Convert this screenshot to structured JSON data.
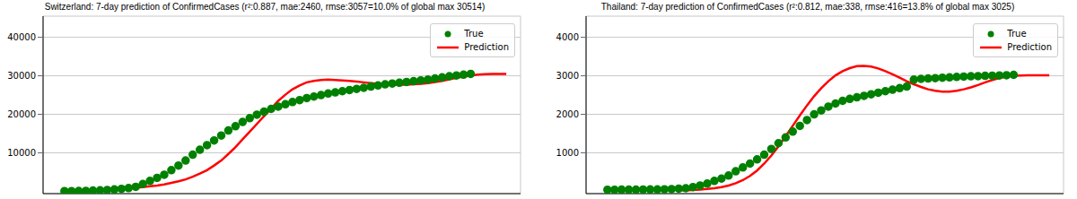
{
  "chart_data": [
    {
      "type": "line",
      "title": "Switzerland: 7-day prediction of ConfirmedCases (r²:0.887, mae:2460, rmse:3057=10.0% of global max 30514)",
      "x": [
        0,
        1,
        2,
        3,
        4,
        5,
        6,
        7,
        8,
        9,
        10,
        11,
        12,
        13,
        14,
        15,
        16,
        17,
        18,
        19,
        20,
        21,
        22,
        23,
        24,
        25,
        26,
        27,
        28,
        29,
        30,
        31,
        32,
        33,
        34,
        35,
        36,
        37,
        38,
        39,
        40,
        41,
        42,
        43,
        44,
        45,
        46,
        47,
        48,
        49,
        50,
        51,
        52,
        53,
        54,
        55,
        56,
        57,
        58,
        59,
        60,
        61,
        62
      ],
      "xlim": [
        -3,
        64
      ],
      "xticks": [
        -2,
        -1,
        0,
        1,
        2,
        3,
        4,
        5,
        6,
        7,
        8,
        9,
        10,
        11,
        12,
        13,
        14,
        15,
        16,
        17,
        18,
        19,
        20,
        21,
        22,
        23,
        24,
        25,
        26,
        27,
        28,
        29,
        30,
        31,
        32,
        33,
        34,
        35,
        36,
        37,
        38,
        39,
        40,
        41,
        42,
        43,
        44,
        45,
        46,
        47,
        48,
        49,
        50,
        51,
        52,
        53,
        54,
        55,
        56,
        57,
        58,
        59,
        60,
        61,
        62,
        63
      ],
      "ylim": [
        -600,
        45500
      ],
      "yticks": [
        10000,
        20000,
        30000,
        40000
      ],
      "grid": true,
      "legend": "upper right",
      "tick_labels": "y",
      "series": [
        {
          "name": "True",
          "color": "green",
          "marker": "o",
          "line_style": "none",
          "values": [
            50,
            60,
            90,
            110,
            210,
            260,
            340,
            500,
            650,
            850,
            1150,
            1900,
            2700,
            3500,
            4300,
            5500,
            6700,
            8000,
            9500,
            10800,
            12000,
            13200,
            14500,
            15800,
            16900,
            18000,
            19000,
            19900,
            20700,
            21400,
            22000,
            22600,
            23200,
            23700,
            24200,
            24600,
            25000,
            25400,
            25700,
            26000,
            26300,
            26600,
            26900,
            27200,
            27500,
            27800,
            28000,
            28200,
            28400,
            28600,
            28800,
            29000,
            29300,
            29600,
            29900,
            30100,
            30300,
            30500,
            null,
            null,
            null,
            null,
            null
          ]
        },
        {
          "name": "Prediction",
          "color": "red",
          "line_style": "solid",
          "values": [
            null,
            null,
            null,
            null,
            null,
            null,
            null,
            null,
            null,
            null,
            1000,
            1100,
            1300,
            1500,
            1800,
            2200,
            2600,
            3100,
            3800,
            4600,
            5500,
            6700,
            8000,
            9700,
            11500,
            13500,
            15500,
            17500,
            19500,
            21500,
            23500,
            25100,
            26500,
            27500,
            28300,
            28700,
            28900,
            29000,
            28900,
            28800,
            28700,
            28500,
            28300,
            28100,
            27900,
            27800,
            27700,
            27700,
            27700,
            27800,
            27900,
            28100,
            28400,
            28700,
            29100,
            29500,
            29800,
            30100,
            30300,
            30400,
            30500,
            30500,
            30500
          ]
        }
      ]
    },
    {
      "type": "line",
      "title": "Thailand: 7-day prediction of ConfirmedCases (r²:0.812, mae:338, rmse:416=13.8% of global max 3025)",
      "x": [
        0,
        1,
        2,
        3,
        4,
        5,
        6,
        7,
        8,
        9,
        10,
        11,
        12,
        13,
        14,
        15,
        16,
        17,
        18,
        19,
        20,
        21,
        22,
        23,
        24,
        25,
        26,
        27,
        28,
        29,
        30,
        31,
        32,
        33,
        34,
        35,
        36,
        37,
        38,
        39,
        40,
        41,
        42,
        43,
        44,
        45,
        46,
        47,
        48,
        49,
        50,
        51,
        52,
        53,
        54,
        55,
        56,
        57,
        58,
        59,
        60,
        61,
        62
      ],
      "xlim": [
        -3,
        64
      ],
      "xticks": [
        -2,
        -1,
        0,
        1,
        2,
        3,
        4,
        5,
        6,
        7,
        8,
        9,
        10,
        11,
        12,
        13,
        14,
        15,
        16,
        17,
        18,
        19,
        20,
        21,
        22,
        23,
        24,
        25,
        26,
        27,
        28,
        29,
        30,
        31,
        32,
        33,
        34,
        35,
        36,
        37,
        38,
        39,
        40,
        41,
        42,
        43,
        44,
        45,
        46,
        47,
        48,
        49,
        50,
        51,
        52,
        53,
        54,
        55,
        56,
        57,
        58,
        59,
        60,
        61,
        62,
        63
      ],
      "ylim": [
        -60,
        4550
      ],
      "yticks": [
        1000,
        2000,
        3000,
        4000
      ],
      "grid": true,
      "legend": "upper right",
      "tick_labels": "y",
      "series": [
        {
          "name": "True",
          "color": "green",
          "marker": "o",
          "line_style": "none",
          "values": [
            40,
            40,
            42,
            43,
            44,
            47,
            48,
            50,
            53,
            59,
            70,
            80,
            110,
            150,
            200,
            270,
            330,
            410,
            520,
            620,
            720,
            830,
            950,
            1100,
            1250,
            1400,
            1550,
            1700,
            1850,
            2000,
            2100,
            2200,
            2280,
            2350,
            2400,
            2440,
            2480,
            2520,
            2560,
            2600,
            2640,
            2680,
            2720,
            2900,
            2920,
            2930,
            2940,
            2950,
            2960,
            2970,
            2980,
            2988,
            2992,
            3000,
            3004,
            3010,
            3015,
            3025,
            null,
            null,
            null,
            null,
            null
          ]
        },
        {
          "name": "Prediction",
          "color": "red",
          "line_style": "solid",
          "values": [
            null,
            null,
            null,
            null,
            null,
            null,
            null,
            null,
            null,
            null,
            20,
            25,
            35,
            45,
            60,
            80,
            110,
            150,
            210,
            290,
            400,
            540,
            720,
            930,
            1170,
            1430,
            1700,
            1970,
            2230,
            2470,
            2680,
            2860,
            3010,
            3120,
            3200,
            3250,
            3260,
            3240,
            3190,
            3120,
            3040,
            2950,
            2860,
            2780,
            2710,
            2650,
            2610,
            2590,
            2590,
            2610,
            2650,
            2700,
            2760,
            2830,
            2890,
            2940,
            2980,
            3000,
            3010,
            3015,
            3015,
            3015,
            3015
          ]
        }
      ]
    }
  ]
}
